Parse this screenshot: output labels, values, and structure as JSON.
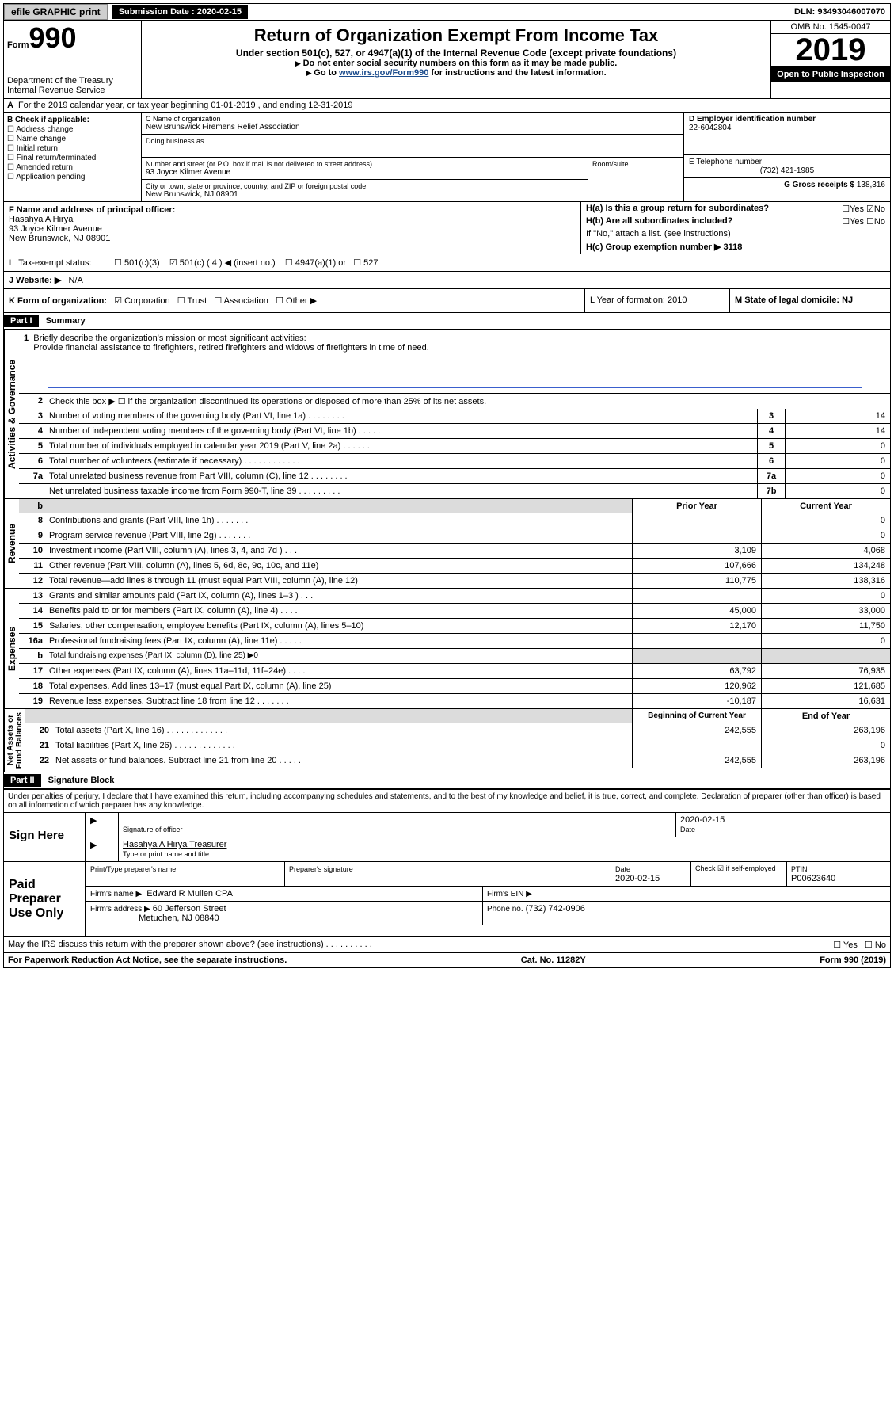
{
  "topbar": {
    "efile": "efile GRAPHIC print",
    "submission_label": "Submission Date : 2020-02-15",
    "dln": "DLN: 93493046007070"
  },
  "header": {
    "form_label": "Form",
    "form_num": "990",
    "dept": "Department of the Treasury",
    "irs": "Internal Revenue Service",
    "title": "Return of Organization Exempt From Income Tax",
    "sub1": "Under section 501(c), 527, or 4947(a)(1) of the Internal Revenue Code (except private foundations)",
    "sub2": "Do not enter social security numbers on this form as it may be made public.",
    "sub3_pre": "Go to ",
    "sub3_link": "www.irs.gov/Form990",
    "sub3_post": " for instructions and the latest information.",
    "omb": "OMB No. 1545-0047",
    "year": "2019",
    "open": "Open to Public Inspection"
  },
  "row_a": "For the 2019 calendar year, or tax year beginning 01-01-2019    , and ending 12-31-2019",
  "col_b": {
    "label": "B Check if applicable:",
    "addr": "Address change",
    "name": "Name change",
    "initial": "Initial return",
    "final": "Final return/terminated",
    "amended": "Amended return",
    "pending": "Application pending"
  },
  "col_c": {
    "name_lab": "C Name of organization",
    "name": "New Brunswick Firemens Relief Association",
    "dba_lab": "Doing business as",
    "street_lab": "Number and street (or P.O. box if mail is not delivered to street address)",
    "street": "93 Joyce Kilmer Avenue",
    "room_lab": "Room/suite",
    "city_lab": "City or town, state or province, country, and ZIP or foreign postal code",
    "city": "New Brunswick, NJ  08901"
  },
  "col_de": {
    "d_lab": "D Employer identification number",
    "d": "22-6042804",
    "e_lab": "E Telephone number",
    "e": "(732) 421-1985",
    "g_lab": "G Gross receipts $ ",
    "g": "138,316"
  },
  "f": {
    "lab": "F  Name and address of principal officer:",
    "name": "Hasahya A Hirya",
    "street": "93 Joyce Kilmer Avenue",
    "city": "New Brunswick, NJ  08901"
  },
  "h": {
    "ha": "H(a)  Is this a group return for subordinates?",
    "hb": "H(b)  Are all subordinates included?",
    "hb_note": "If \"No,\" attach a list. (see instructions)",
    "hc": "H(c)  Group exemption number ▶   3118"
  },
  "tax": {
    "lab": "Tax-exempt status:",
    "c3": "501(c)(3)",
    "c": "501(c) ( 4 ) ◀ (insert no.)",
    "a4947": "4947(a)(1) or",
    "s527": "527"
  },
  "web": {
    "lab": "J    Website: ▶",
    "val": "N/A"
  },
  "k": {
    "lab": "K Form of organization:",
    "corp": "Corporation",
    "trust": "Trust",
    "assoc": "Association",
    "other": "Other ▶",
    "l": "L Year of formation: 2010",
    "m": "M State of legal domicile: NJ"
  },
  "part1": {
    "num": "Part I",
    "title": "Summary",
    "mission_lab": "Briefly describe the organization's mission or most significant activities:",
    "mission": "Provide financial assistance to firefighters, retired firefighters and widows of firefighters in time of need.",
    "line2": "Check this box ▶ ☐  if the organization discontinued its operations or disposed of more than 25% of its net assets.",
    "lines_gov": [
      {
        "n": "3",
        "t": "Number of voting members of the governing body (Part VI, line 1a)   .    .    .    .    .    .    .    .",
        "box": "3",
        "v": "14"
      },
      {
        "n": "4",
        "t": "Number of independent voting members of the governing body (Part VI, line 1b)    .    .    .    .    .",
        "box": "4",
        "v": "14"
      },
      {
        "n": "5",
        "t": "Total number of individuals employed in calendar year 2019 (Part V, line 2a)    .    .    .    .    .    .",
        "box": "5",
        "v": "0"
      },
      {
        "n": "6",
        "t": "Total number of volunteers (estimate if necessary)    .    .    .    .    .    .    .    .    .    .    .    .",
        "box": "6",
        "v": "0"
      },
      {
        "n": "7a",
        "t": "Total unrelated business revenue from Part VIII, column (C), line 12   .    .    .    .    .    .    .    .",
        "box": "7a",
        "v": "0"
      },
      {
        "n": "",
        "t": "Net unrelated business taxable income from Form 990-T, line 39    .    .    .    .    .    .    .    .    .",
        "box": "7b",
        "v": "0"
      }
    ],
    "rev_hdr": {
      "py": "Prior Year",
      "cy": "Current Year"
    },
    "lines_rev": [
      {
        "n": "8",
        "t": "Contributions and grants (Part VIII, line 1h)    .    .    .    .    .    .    .",
        "py": "",
        "cy": "0"
      },
      {
        "n": "9",
        "t": "Program service revenue (Part VIII, line 2g)    .    .    .    .    .    .    .",
        "py": "",
        "cy": "0"
      },
      {
        "n": "10",
        "t": "Investment income (Part VIII, column (A), lines 3, 4, and 7d )    .    .    .",
        "py": "3,109",
        "cy": "4,068"
      },
      {
        "n": "11",
        "t": "Other revenue (Part VIII, column (A), lines 5, 6d, 8c, 9c, 10c, and 11e)",
        "py": "107,666",
        "cy": "134,248"
      },
      {
        "n": "12",
        "t": "Total revenue—add lines 8 through 11 (must equal Part VIII, column (A), line 12)",
        "py": "110,775",
        "cy": "138,316"
      }
    ],
    "lines_exp": [
      {
        "n": "13",
        "t": "Grants and similar amounts paid (Part IX, column (A), lines 1–3 )   .    .    .",
        "py": "",
        "cy": "0"
      },
      {
        "n": "14",
        "t": "Benefits paid to or for members (Part IX, column (A), line 4)   .    .    .    .",
        "py": "45,000",
        "cy": "33,000"
      },
      {
        "n": "15",
        "t": "Salaries, other compensation, employee benefits (Part IX, column (A), lines 5–10)",
        "py": "12,170",
        "cy": "11,750"
      },
      {
        "n": "16a",
        "t": "Professional fundraising fees (Part IX, column (A), line 11e)    .    .    .    .    .",
        "py": "",
        "cy": "0"
      },
      {
        "n": "b",
        "t": "Total fundraising expenses (Part IX, column (D), line 25) ▶0",
        "py": "—shaded—",
        "cy": "—shaded—"
      },
      {
        "n": "17",
        "t": "Other expenses (Part IX, column (A), lines 11a–11d, 11f–24e)   .    .    .    .",
        "py": "63,792",
        "cy": "76,935"
      },
      {
        "n": "18",
        "t": "Total expenses. Add lines 13–17 (must equal Part IX, column (A), line 25)",
        "py": "120,962",
        "cy": "121,685"
      },
      {
        "n": "19",
        "t": "Revenue less expenses. Subtract line 18 from line 12    .    .    .    .    .    .    .",
        "py": "-10,187",
        "cy": "16,631"
      }
    ],
    "na_hdr": {
      "py": "Beginning of Current Year",
      "cy": "End of Year"
    },
    "lines_na": [
      {
        "n": "20",
        "t": "Total assets (Part X, line 16)    .    .    .    .    .    .    .    .    .    .    .    .    .",
        "py": "242,555",
        "cy": "263,196"
      },
      {
        "n": "21",
        "t": "Total liabilities (Part X, line 26)    .    .    .    .    .    .    .    .    .    .    .    .    .",
        "py": "",
        "cy": "0"
      },
      {
        "n": "22",
        "t": "Net assets or fund balances. Subtract line 21 from line 20    .    .    .    .    .",
        "py": "242,555",
        "cy": "263,196"
      }
    ]
  },
  "part2": {
    "num": "Part II",
    "title": "Signature Block",
    "penalty": "Under penalties of perjury, I declare that I have examined this return, including accompanying schedules and statements, and to the best of my knowledge and belief, it is true, correct, and complete. Declaration of preparer (other than officer) is based on all information of which preparer has any knowledge."
  },
  "sign": {
    "here": "Sign Here",
    "sig_lab": "Signature of officer",
    "date": "2020-02-15",
    "date_lab": "Date",
    "name": "Hasahya A Hirya  Treasurer",
    "name_lab": "Type or print name and title"
  },
  "preparer": {
    "label": "Paid Preparer Use Only",
    "print_lab": "Print/Type preparer's name",
    "sig_lab": "Preparer's signature",
    "date_lab": "Date",
    "date": "2020-02-15",
    "check_lab": "Check ☑ if self-employed",
    "ptin_lab": "PTIN",
    "ptin": "P00623640",
    "firm_name_lab": "Firm's name     ▶",
    "firm_name": "Edward R Mullen CPA",
    "firm_ein_lab": "Firm's EIN ▶",
    "firm_addr_lab": "Firm's address ▶",
    "firm_addr": "60 Jefferson Street",
    "firm_city": "Metuchen, NJ  08840",
    "phone_lab": "Phone no.",
    "phone": "(732) 742-0906"
  },
  "discuss": "May the IRS discuss this return with the preparer shown above? (see instructions)    .    .    .    .    .    .    .    .    .    .",
  "footer": {
    "pra": "For Paperwork Reduction Act Notice, see the separate instructions.",
    "cat": "Cat. No. 11282Y",
    "form": "Form 990 (2019)"
  }
}
